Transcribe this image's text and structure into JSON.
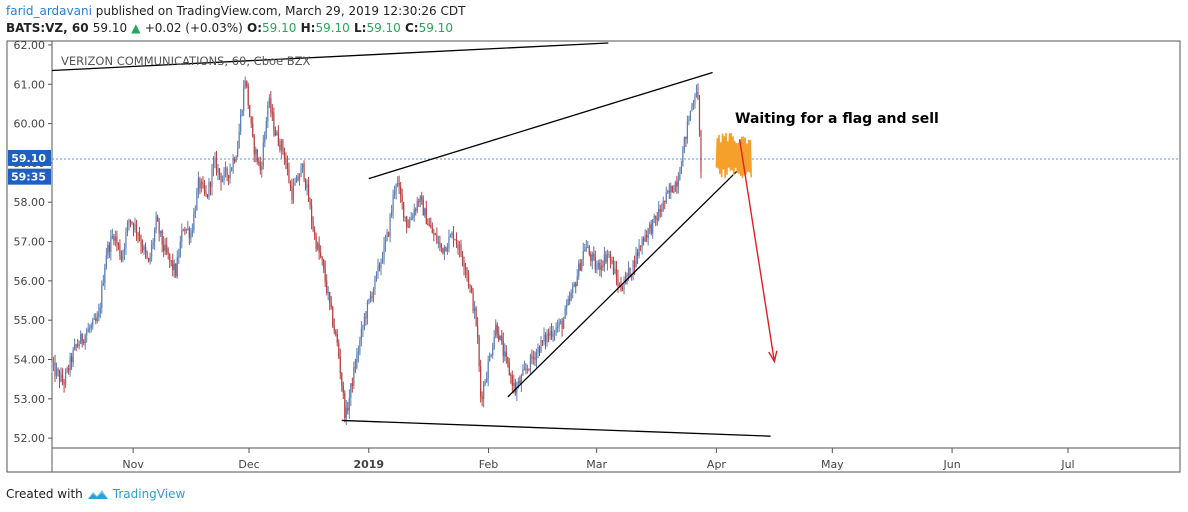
{
  "header": {
    "author": "farid_ardavani",
    "published_text": "published on TradingView.com, March 29, 2019 12:30:26 CDT",
    "ohlc": {
      "symbol": "BATS:VZ, 60",
      "last": "59.10",
      "change": "+0.02 (+0.03%)",
      "o_label": "O:",
      "o": "59.10",
      "h_label": "H:",
      "h": "59.10",
      "l_label": "L:",
      "l": "59.10",
      "c_label": "C:",
      "c": "59.10"
    }
  },
  "footer": {
    "created_with": "Created with",
    "brand": "TradingView"
  },
  "colors": {
    "up": "#5b7fb5",
    "down": "#b84040",
    "accent": "#1f5fbf",
    "arrow": "#e02020",
    "scribble": "#f5a02a",
    "trendline": "#000000"
  },
  "chart_data": {
    "type": "candlestick",
    "title": "VERIZON COMMUNICATIONS, 60, Cboe BZX",
    "annotation": "Waiting for a flag and sell",
    "y_ticks": [
      "62.00",
      "61.00",
      "60.00",
      "59.00",
      "58.00",
      "57.00",
      "56.00",
      "55.00",
      "54.00",
      "53.00",
      "52.00"
    ],
    "ylim": [
      51.8,
      62.1
    ],
    "x_ticks": [
      {
        "label": "Nov",
        "date": "2018-11-01"
      },
      {
        "label": "Dec",
        "date": "2018-12-01"
      },
      {
        "label": "2019",
        "date": "2019-01-01",
        "bold": true
      },
      {
        "label": "Feb",
        "date": "2019-02-01"
      },
      {
        "label": "Mar",
        "date": "2019-03-01"
      },
      {
        "label": "Apr",
        "date": "2019-04-01"
      },
      {
        "label": "May",
        "date": "2019-05-01"
      },
      {
        "label": "Jun",
        "date": "2019-06-01"
      },
      {
        "label": "Jul",
        "date": "2019-07-01"
      }
    ],
    "xlim": [
      "2018-10-11",
      "2019-07-30"
    ],
    "price_labels": [
      {
        "text": "59.10",
        "value": 59.1
      },
      {
        "text": "59:35",
        "value": 58.65
      }
    ],
    "price_line": 59.1,
    "price_path": [
      [
        "2018-10-11",
        53.8
      ],
      [
        "2018-10-14",
        53.4
      ],
      [
        "2018-10-17",
        54.3
      ],
      [
        "2018-10-20",
        54.7
      ],
      [
        "2018-10-23",
        55.0
      ],
      [
        "2018-10-25",
        56.7
      ],
      [
        "2018-10-27",
        57.2
      ],
      [
        "2018-10-29",
        56.6
      ],
      [
        "2018-10-31",
        57.6
      ],
      [
        "2018-11-02",
        57.3
      ],
      [
        "2018-11-05",
        56.4
      ],
      [
        "2018-11-07",
        57.5
      ],
      [
        "2018-11-09",
        56.8
      ],
      [
        "2018-11-12",
        56.2
      ],
      [
        "2018-11-14",
        57.4
      ],
      [
        "2018-11-16",
        57.2
      ],
      [
        "2018-11-18",
        58.5
      ],
      [
        "2018-11-20",
        58.1
      ],
      [
        "2018-11-22",
        59.0
      ],
      [
        "2018-11-24",
        58.6
      ],
      [
        "2018-11-26",
        58.8
      ],
      [
        "2018-11-28",
        59.4
      ],
      [
        "2018-11-30",
        61.2
      ],
      [
        "2018-12-02",
        59.5
      ],
      [
        "2018-12-04",
        58.8
      ],
      [
        "2018-12-06",
        60.6
      ],
      [
        "2018-12-08",
        59.7
      ],
      [
        "2018-12-10",
        59.3
      ],
      [
        "2018-12-12",
        58.2
      ],
      [
        "2018-12-15",
        58.9
      ],
      [
        "2018-12-18",
        57.1
      ],
      [
        "2018-12-20",
        56.4
      ],
      [
        "2018-12-22",
        55.3
      ],
      [
        "2018-12-24",
        54.3
      ],
      [
        "2018-12-26",
        52.5
      ],
      [
        "2018-12-28",
        53.6
      ],
      [
        "2018-12-31",
        55.1
      ],
      [
        "2019-01-03",
        56.1
      ],
      [
        "2019-01-06",
        57.2
      ],
      [
        "2019-01-08",
        58.6
      ],
      [
        "2019-01-11",
        57.4
      ],
      [
        "2019-01-14",
        58.1
      ],
      [
        "2019-01-17",
        57.3
      ],
      [
        "2019-01-20",
        56.8
      ],
      [
        "2019-01-23",
        57.2
      ],
      [
        "2019-01-26",
        56.4
      ],
      [
        "2019-01-28",
        55.4
      ],
      [
        "2019-01-29",
        54.8
      ],
      [
        "2019-01-30",
        53.0
      ],
      [
        "2019-02-01",
        53.9
      ],
      [
        "2019-02-03",
        54.9
      ],
      [
        "2019-02-05",
        54.1
      ],
      [
        "2019-02-08",
        53.2
      ],
      [
        "2019-02-11",
        53.8
      ],
      [
        "2019-02-14",
        54.3
      ],
      [
        "2019-02-17",
        54.7
      ],
      [
        "2019-02-20",
        54.9
      ],
      [
        "2019-02-23",
        55.8
      ],
      [
        "2019-02-26",
        56.9
      ],
      [
        "2019-03-01",
        56.3
      ],
      [
        "2019-03-04",
        56.7
      ],
      [
        "2019-03-07",
        55.8
      ],
      [
        "2019-03-10",
        56.3
      ],
      [
        "2019-03-13",
        57.1
      ],
      [
        "2019-03-16",
        57.5
      ],
      [
        "2019-03-19",
        58.1
      ],
      [
        "2019-03-22",
        58.6
      ],
      [
        "2019-03-25",
        60.2
      ],
      [
        "2019-03-27",
        61.0
      ],
      [
        "2019-03-28",
        58.9
      ]
    ],
    "trendlines": [
      {
        "from": [
          "2018-10-11",
          61.35
        ],
        "to": [
          "2019-03-04",
          62.05
        ]
      },
      {
        "from": [
          "2018-12-25",
          52.45
        ],
        "to": [
          "2019-04-15",
          52.05
        ]
      },
      {
        "from": [
          "2019-01-01",
          58.6
        ],
        "to": [
          "2019-03-31",
          61.3
        ]
      },
      {
        "from": [
          "2019-02-06",
          53.05
        ],
        "to": [
          "2019-04-09",
          59.05
        ]
      }
    ],
    "forecast_arrow": {
      "from": [
        "2019-04-07",
        59.6
      ],
      "to": [
        "2019-04-16",
        53.95
      ]
    }
  }
}
